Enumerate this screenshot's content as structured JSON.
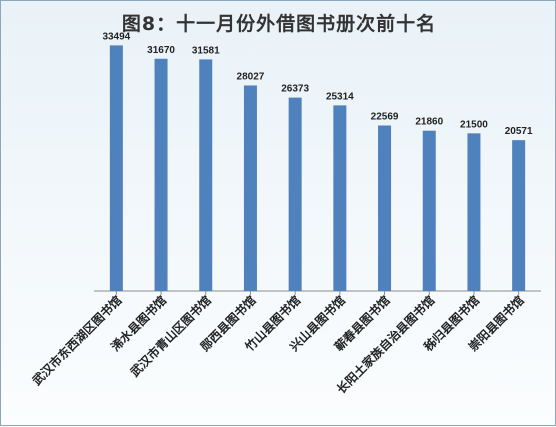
{
  "chart_data": {
    "type": "bar",
    "title": "图8：十一月份外借图书册次前十名",
    "categories": [
      "武汉市东西湖区图书馆",
      "浠水县图书馆",
      "武汉市青山区图书馆",
      "郧西县图书馆",
      "竹山县图书馆",
      "兴山县图书馆",
      "蕲春县图书馆",
      "长阳土家族自治县图书馆",
      "秭归县图书馆",
      "崇阳县图书馆"
    ],
    "values": [
      33494,
      31670,
      31581,
      28027,
      26373,
      25314,
      22569,
      21860,
      21500,
      20571
    ],
    "ylim": [
      0,
      36000
    ],
    "grid": false,
    "bar_color": "#4f81bd",
    "axis_color": "#8c8c8c"
  }
}
